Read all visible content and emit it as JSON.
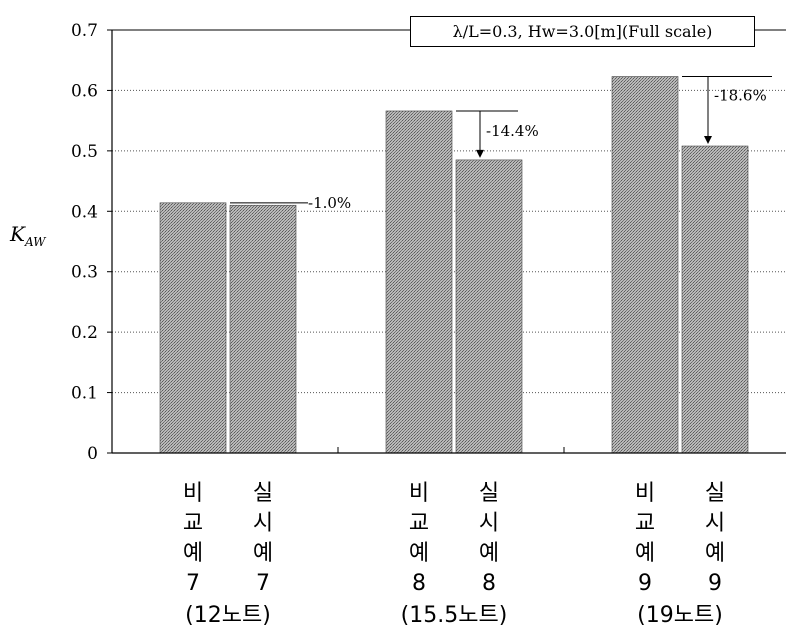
{
  "chart_data": {
    "type": "bar",
    "ylabel": "K",
    "ylabel_sub": "AW",
    "ylim": [
      0,
      0.7
    ],
    "yticks": [
      "0",
      "0.1",
      "0.2",
      "0.3",
      "0.4",
      "0.5",
      "0.6",
      "0.7"
    ],
    "grid": "horizontal dotted",
    "legend_text": "λ/L=0.3, Hw=3.0[m](Full scale)",
    "legend_position": "top-right",
    "groups": [
      {
        "bars": [
          {
            "label": [
              "비",
              "교",
              "예",
              "7"
            ],
            "value": 0.414
          },
          {
            "label": [
              "실",
              "시",
              "예",
              "7"
            ],
            "value": 0.41
          }
        ],
        "speed": "(12노트)",
        "change": "-1.0%"
      },
      {
        "bars": [
          {
            "label": [
              "비",
              "교",
              "예",
              "8"
            ],
            "value": 0.566
          },
          {
            "label": [
              "실",
              "시",
              "예",
              "8"
            ],
            "value": 0.485
          }
        ],
        "speed": "(15.5노트)",
        "change": "-14.4%"
      },
      {
        "bars": [
          {
            "label": [
              "비",
              "교",
              "예",
              "9"
            ],
            "value": 0.623
          },
          {
            "label": [
              "실",
              "시",
              "예",
              "9"
            ],
            "value": 0.508
          }
        ],
        "speed": "(19노트)",
        "change": "-18.6%"
      }
    ],
    "colors": {
      "bar_fill": "#a8a8a8",
      "axis": "#000000"
    }
  }
}
